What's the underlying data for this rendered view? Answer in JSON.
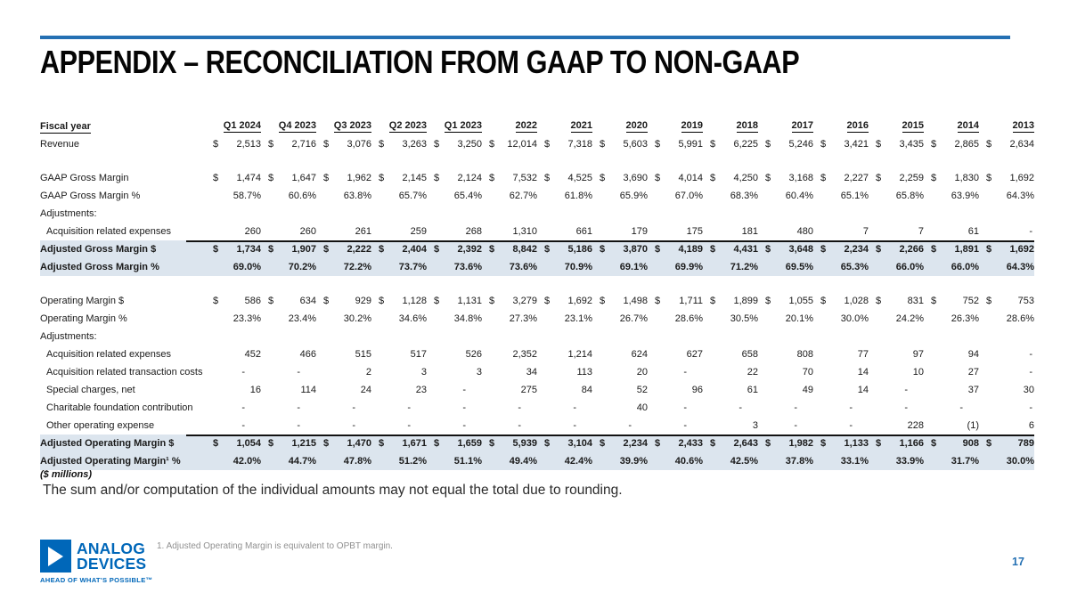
{
  "slide": {
    "title": "APPENDIX – RECONCILIATION FROM GAAP TO NON-GAAP",
    "units_note": "($ millions)",
    "rounding_note": "The sum and/or computation of the individual amounts may not equal the total due to rounding.",
    "footnote": "1. Adjusted Operating Margin is equivalent to OPBT margin.",
    "page_number": "17"
  },
  "logo": {
    "name": "Analog Devices",
    "line1": "ANALOG",
    "line2": "DEVICES",
    "tagline": "AHEAD OF WHAT'S POSSIBLE™",
    "icon": "play-triangle-icon"
  },
  "colors": {
    "accent_blue": "#2470b3",
    "logo_blue": "#0067b9",
    "row_highlight": "#dce5ee"
  },
  "table": {
    "header_label": "Fiscal year",
    "columns": [
      "Q1 2024",
      "Q4 2023",
      "Q3 2023",
      "Q2 2023",
      "Q1 2023",
      "2022",
      "2021",
      "2020",
      "2019",
      "2018",
      "2017",
      "2016",
      "2015",
      "2014",
      "2013"
    ],
    "rows": [
      {
        "label": "Revenue",
        "type": "dollar",
        "values": [
          "2,513",
          "2,716",
          "3,076",
          "3,263",
          "3,250",
          "12,014",
          "7,318",
          "5,603",
          "5,991",
          "6,225",
          "5,246",
          "3,421",
          "3,435",
          "2,865",
          "2,634"
        ]
      },
      {
        "type": "spacer"
      },
      {
        "label": "GAAP Gross Margin",
        "type": "dollar",
        "values": [
          "1,474",
          "1,647",
          "1,962",
          "2,145",
          "2,124",
          "7,532",
          "4,525",
          "3,690",
          "4,014",
          "4,250",
          "3,168",
          "2,227",
          "2,259",
          "1,830",
          "1,692"
        ]
      },
      {
        "label": "GAAP Gross Margin %",
        "type": "percent",
        "values": [
          "58.7%",
          "60.6%",
          "63.8%",
          "65.7%",
          "65.4%",
          "62.7%",
          "61.8%",
          "65.9%",
          "67.0%",
          "68.3%",
          "60.4%",
          "65.1%",
          "65.8%",
          "63.9%",
          "64.3%"
        ]
      },
      {
        "label": "Adjustments:",
        "type": "section"
      },
      {
        "label": "Acquisition related expenses",
        "type": "plain",
        "indent": true,
        "values": [
          "260",
          "260",
          "261",
          "259",
          "268",
          "1,310",
          "661",
          "179",
          "175",
          "181",
          "480",
          "7",
          "7",
          "61",
          "-"
        ]
      },
      {
        "label": "Adjusted Gross Margin $",
        "type": "dollar",
        "highlight": true,
        "total": true,
        "values": [
          "1,734",
          "1,907",
          "2,222",
          "2,404",
          "2,392",
          "8,842",
          "5,186",
          "3,870",
          "4,189",
          "4,431",
          "3,648",
          "2,234",
          "2,266",
          "1,891",
          "1,692"
        ]
      },
      {
        "label": "Adjusted Gross Margin %",
        "type": "percent",
        "highlight": true,
        "values": [
          "69.0%",
          "70.2%",
          "72.2%",
          "73.7%",
          "73.6%",
          "73.6%",
          "70.9%",
          "69.1%",
          "69.9%",
          "71.2%",
          "69.5%",
          "65.3%",
          "66.0%",
          "66.0%",
          "64.3%"
        ]
      },
      {
        "type": "spacer"
      },
      {
        "label": "Operating Margin $",
        "type": "dollar",
        "values": [
          "586",
          "634",
          "929",
          "1,128",
          "1,131",
          "3,279",
          "1,692",
          "1,498",
          "1,711",
          "1,899",
          "1,055",
          "1,028",
          "831",
          "752",
          "753"
        ]
      },
      {
        "label": "Operating Margin %",
        "type": "percent",
        "values": [
          "23.3%",
          "23.4%",
          "30.2%",
          "34.6%",
          "34.8%",
          "27.3%",
          "23.1%",
          "26.7%",
          "28.6%",
          "30.5%",
          "20.1%",
          "30.0%",
          "24.2%",
          "26.3%",
          "28.6%"
        ]
      },
      {
        "label": "Adjustments:",
        "type": "section"
      },
      {
        "label": "Acquisition related expenses",
        "type": "plain",
        "indent": true,
        "values": [
          "452",
          "466",
          "515",
          "517",
          "526",
          "2,352",
          "1,214",
          "624",
          "627",
          "658",
          "808",
          "77",
          "97",
          "94",
          "-"
        ]
      },
      {
        "label": "Acquisition related transaction costs",
        "type": "plain",
        "indent": true,
        "values": [
          "-",
          "-",
          "2",
          "3",
          "3",
          "34",
          "113",
          "20",
          "-",
          "22",
          "70",
          "14",
          "10",
          "27",
          "-"
        ]
      },
      {
        "label": "Special charges, net",
        "type": "plain",
        "indent": true,
        "values": [
          "16",
          "114",
          "24",
          "23",
          "-",
          "275",
          "84",
          "52",
          "96",
          "61",
          "49",
          "14",
          "-",
          "37",
          "30"
        ]
      },
      {
        "label": "Charitable foundation contribution",
        "type": "plain",
        "indent": true,
        "values": [
          "-",
          "-",
          "-",
          "-",
          "-",
          "-",
          "-",
          "40",
          "-",
          "-",
          "-",
          "-",
          "-",
          "-",
          "-"
        ]
      },
      {
        "label": "Other operating expense",
        "type": "plain",
        "indent": true,
        "values": [
          "-",
          "-",
          "-",
          "-",
          "-",
          "-",
          "-",
          "-",
          "-",
          "3",
          "-",
          "-",
          "228",
          "(1)",
          "6"
        ]
      },
      {
        "label": "Adjusted Operating Margin $",
        "type": "dollar",
        "highlight": true,
        "total": true,
        "values": [
          "1,054",
          "1,215",
          "1,470",
          "1,671",
          "1,659",
          "5,939",
          "3,104",
          "2,234",
          "2,433",
          "2,643",
          "1,982",
          "1,133",
          "1,166",
          "908",
          "789"
        ]
      },
      {
        "label": "Adjusted Operating Margin¹ %",
        "type": "percent",
        "highlight": true,
        "values": [
          "42.0%",
          "44.7%",
          "47.8%",
          "51.2%",
          "51.1%",
          "49.4%",
          "42.4%",
          "39.9%",
          "40.6%",
          "42.5%",
          "37.8%",
          "33.1%",
          "33.9%",
          "31.7%",
          "30.0%"
        ]
      }
    ]
  }
}
